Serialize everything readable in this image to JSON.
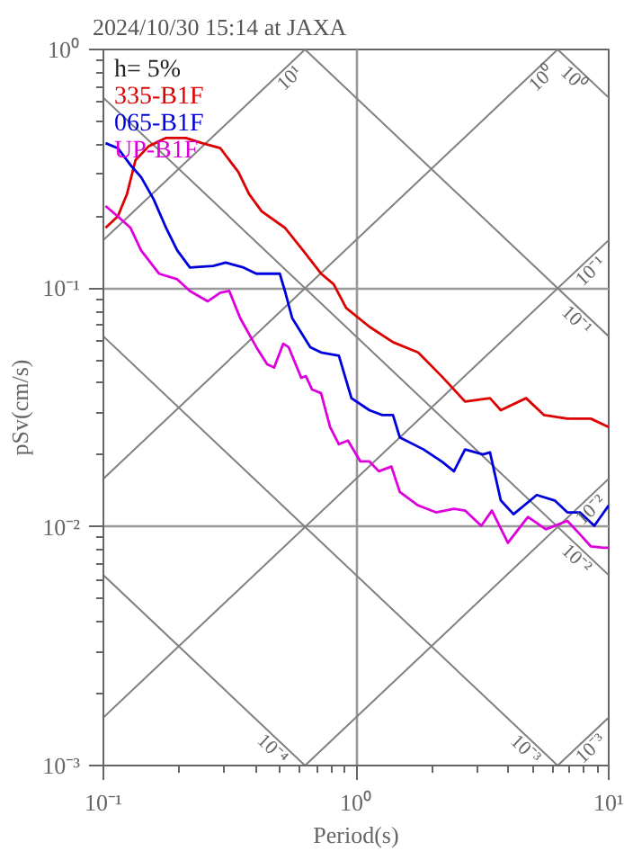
{
  "chart_data": {
    "type": "line",
    "title": "2024/10/30 15:14 at JAXA",
    "xlabel": "Period(s)",
    "ylabel": "pSv(cm/s)",
    "legend_title": "h= 5%",
    "legend": "top left",
    "log": "xy",
    "grid": true,
    "marker": "none",
    "line_style": "solid",
    "annotations": [
      {
        "text": "10¹",
        "x": 0.628,
        "y": 1
      },
      {
        "text": "10⁰",
        "x": 6.28,
        "y": 1
      },
      {
        "text": "10⁻¹",
        "x": 10,
        "y": 0.159
      },
      {
        "text": "10⁻²",
        "x": 10,
        "y": 0.0159
      },
      {
        "text": "10⁻³",
        "x": 10,
        "y": 0.00159
      },
      {
        "text": "10⁰",
        "x": 6.28,
        "y": 1
      },
      {
        "text": "10⁻¹",
        "x": 10,
        "y": 0.0628
      },
      {
        "text": "10⁻²",
        "x": 10,
        "y": 0.00628
      },
      {
        "text": "10⁻³",
        "x": 6.28,
        "y": 0.001
      },
      {
        "text": "10⁻⁴",
        "x": 0.628,
        "y": 0.001
      }
    ],
    "xlim": [
      0.1,
      10
    ],
    "ylim": [
      0.001,
      1
    ],
    "xticks": [
      {
        "value": 0.1,
        "label": "10⁻¹"
      },
      {
        "value": 0.2,
        "label": null
      },
      {
        "value": 0.3,
        "label": null
      },
      {
        "value": 0.4,
        "label": null
      },
      {
        "value": 0.5,
        "label": null
      },
      {
        "value": 0.6,
        "label": null
      },
      {
        "value": 0.7,
        "label": null
      },
      {
        "value": 0.8,
        "label": null
      },
      {
        "value": 0.9,
        "label": null
      },
      {
        "value": 1,
        "label": "10⁰"
      },
      {
        "value": 2,
        "label": null
      },
      {
        "value": 3,
        "label": null
      },
      {
        "value": 4,
        "label": null
      },
      {
        "value": 5,
        "label": null
      },
      {
        "value": 6,
        "label": null
      },
      {
        "value": 7,
        "label": null
      },
      {
        "value": 8,
        "label": null
      },
      {
        "value": 9,
        "label": null
      },
      {
        "value": 10,
        "label": "10¹"
      }
    ],
    "yticks": [
      {
        "value": 0.001,
        "label": "10⁻³"
      },
      {
        "value": 0.002,
        "label": null
      },
      {
        "value": 0.003,
        "label": null
      },
      {
        "value": 0.004,
        "label": null
      },
      {
        "value": 0.005,
        "label": null
      },
      {
        "value": 0.006,
        "label": null
      },
      {
        "value": 0.007,
        "label": null
      },
      {
        "value": 0.008,
        "label": null
      },
      {
        "value": 0.009,
        "label": null
      },
      {
        "value": 0.01,
        "label": "10⁻²"
      },
      {
        "value": 0.02,
        "label": null
      },
      {
        "value": 0.03,
        "label": null
      },
      {
        "value": 0.04,
        "label": null
      },
      {
        "value": 0.05,
        "label": null
      },
      {
        "value": 0.06,
        "label": null
      },
      {
        "value": 0.07,
        "label": null
      },
      {
        "value": 0.08,
        "label": null
      },
      {
        "value": 0.09,
        "label": null
      },
      {
        "value": 0.1,
        "label": "10⁻¹"
      },
      {
        "value": 0.2,
        "label": null
      },
      {
        "value": 0.3,
        "label": null
      },
      {
        "value": 0.4,
        "label": null
      },
      {
        "value": 0.5,
        "label": null
      },
      {
        "value": 0.6,
        "label": null
      },
      {
        "value": 0.7,
        "label": null
      },
      {
        "value": 0.8,
        "label": null
      },
      {
        "value": 0.9,
        "label": null
      },
      {
        "value": 1,
        "label": "10⁰"
      }
    ],
    "series": [
      {
        "color": "#808080",
        "x": [
          0.1,
          0.628
        ],
        "values": [
          0.159,
          1
        ]
      },
      {
        "color": "#808080",
        "x": [
          0.1,
          6.28
        ],
        "values": [
          0.0159,
          1
        ]
      },
      {
        "color": "#808080",
        "x": [
          0.1,
          10
        ],
        "values": [
          0.00159,
          0.159
        ]
      },
      {
        "color": "#808080",
        "x": [
          0.628,
          10
        ],
        "values": [
          0.001,
          0.0159
        ]
      },
      {
        "color": "#808080",
        "x": [
          6.28,
          10
        ],
        "values": [
          0.001,
          0.00159
        ]
      },
      {
        "color": "#808080",
        "x": [
          10,
          6.28
        ],
        "values": [
          0.628,
          1
        ]
      },
      {
        "color": "#808080",
        "x": [
          0.628,
          10
        ],
        "values": [
          1,
          0.0628
        ]
      },
      {
        "color": "#808080",
        "x": [
          0.1,
          10
        ],
        "values": [
          0.628,
          0.00628
        ]
      },
      {
        "color": "#808080",
        "x": [
          0.1,
          6.28
        ],
        "values": [
          0.0628,
          0.001
        ]
      },
      {
        "color": "#808080",
        "x": [
          0.1,
          0.628
        ],
        "values": [
          0.00628,
          0.001
        ]
      },
      {
        "name": "335-B1F",
        "color": "#dd0000",
        "x": [
          0.102,
          0.114,
          0.124,
          0.134,
          0.151,
          0.177,
          0.212,
          0.246,
          0.29,
          0.342,
          0.377,
          0.423,
          0.523,
          0.617,
          0.727,
          0.815,
          0.914,
          1.13,
          1.4,
          1.76,
          2.18,
          2.7,
          3.39,
          3.74,
          4.71,
          5.55,
          6.86,
          8.49,
          10
        ],
        "values": [
          0.179,
          0.2,
          0.248,
          0.344,
          0.393,
          0.426,
          0.426,
          0.405,
          0.386,
          0.307,
          0.248,
          0.21,
          0.179,
          0.144,
          0.115,
          0.104,
          0.0826,
          0.0689,
          0.0594,
          0.0538,
          0.0428,
          0.0335,
          0.0346,
          0.0308,
          0.0346,
          0.0294,
          0.0284,
          0.0284,
          0.0262
        ]
      },
      {
        "name": "065-B1F",
        "color": "#0000dd",
        "x": [
          0.102,
          0.114,
          0.128,
          0.141,
          0.158,
          0.177,
          0.196,
          0.22,
          0.272,
          0.305,
          0.359,
          0.403,
          0.474,
          0.499,
          0.523,
          0.559,
          0.659,
          0.727,
          0.855,
          0.959,
          1.13,
          1.27,
          1.4,
          1.49,
          1.85,
          2.18,
          2.44,
          2.7,
          3.18,
          3.39,
          3.74,
          4.2,
          5.19,
          6.11,
          6.86,
          7.69,
          8.77,
          10
        ],
        "values": [
          0.405,
          0.386,
          0.328,
          0.292,
          0.236,
          0.179,
          0.144,
          0.122,
          0.124,
          0.128,
          0.122,
          0.115,
          0.115,
          0.115,
          0.0973,
          0.0748,
          0.0566,
          0.0538,
          0.0521,
          0.0346,
          0.0308,
          0.0294,
          0.0294,
          0.0237,
          0.0211,
          0.0188,
          0.0171,
          0.0211,
          0.0201,
          0.0205,
          0.0129,
          0.0113,
          0.0136,
          0.0129,
          0.0115,
          0.0115,
          0.0101,
          0.0123
        ]
      },
      {
        "name": "UP-B1F",
        "color": "#dd00dd",
        "x": [
          0.102,
          0.114,
          0.128,
          0.141,
          0.166,
          0.196,
          0.22,
          0.259,
          0.29,
          0.315,
          0.348,
          0.403,
          0.445,
          0.474,
          0.515,
          0.541,
          0.607,
          0.633,
          0.67,
          0.727,
          0.789,
          0.855,
          0.929,
          1.04,
          1.13,
          1.23,
          1.38,
          1.49,
          1.76,
          2.07,
          2.44,
          2.7,
          3.13,
          3.45,
          3.99,
          4.79,
          5.64,
          6.86,
          7.69,
          8.49,
          9.53,
          10
        ],
        "values": [
          0.221,
          0.2,
          0.179,
          0.144,
          0.115,
          0.109,
          0.0973,
          0.0881,
          0.0957,
          0.0973,
          0.0748,
          0.0566,
          0.048,
          0.0465,
          0.0585,
          0.0566,
          0.0421,
          0.0428,
          0.0376,
          0.0363,
          0.0262,
          0.0222,
          0.023,
          0.0188,
          0.0188,
          0.0171,
          0.0179,
          0.014,
          0.0123,
          0.0115,
          0.0119,
          0.0117,
          0.0101,
          0.0117,
          0.00857,
          0.011,
          0.00977,
          0.0106,
          0.00931,
          0.00829,
          0.00817,
          0.00817
        ]
      }
    ]
  }
}
